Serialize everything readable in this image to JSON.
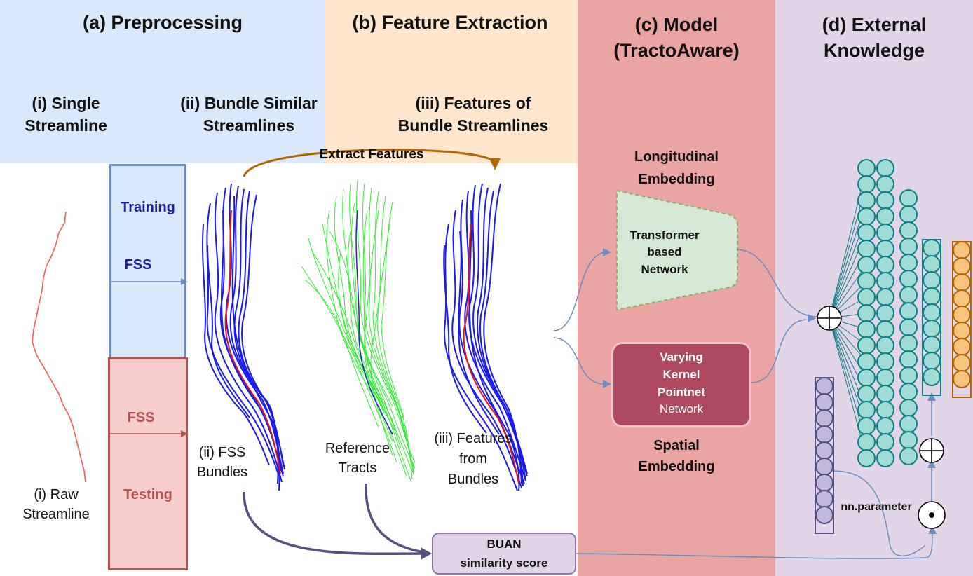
{
  "panels": {
    "a_title": "(a) Preprocessing",
    "b_title": "(b) Feature Extraction",
    "c_title_1": "(c) Model",
    "c_title_2": "(TractoAware)",
    "d_title_1": "(d) External",
    "d_title_2": "Knowledge"
  },
  "subtitles": {
    "i_1": "(i) Single",
    "i_2": "Streamline",
    "ii_1": "(ii) Bundle Similar",
    "ii_2": "Streamlines",
    "iii_1": "(iii) Features of",
    "iii_2": "Bundle Streamlines"
  },
  "preprocessing": {
    "training_label": "Training",
    "fss_top": "FSS",
    "fss_bottom": "FSS",
    "testing_label": "Testing",
    "raw_1": "(i) Raw",
    "raw_2": "Streamline",
    "fss_bundles_1": "(ii) FSS",
    "fss_bundles_2": "Bundles"
  },
  "features": {
    "extract_label": "Extract Features",
    "reference_1": "Reference",
    "reference_2": "Tracts",
    "from_bundles_1": "(iii) Features",
    "from_bundles_2": "from",
    "from_bundles_3": "Bundles",
    "buan_1": "BUAN",
    "buan_2": "similarity score"
  },
  "model": {
    "longitudinal_1": "Longitudinal",
    "longitudinal_2": "Embedding",
    "transformer_1": "Transformer",
    "transformer_2": "based",
    "transformer_3": "Network",
    "varying_1": "Varying",
    "varying_2": "Kernel",
    "varying_3": "Pointnet",
    "varying_4": "Network",
    "spatial_1": "Spatial",
    "spatial_2": "Embedding"
  },
  "knowledge": {
    "nn_param": "nn.parameter"
  },
  "colors": {
    "preprocess_bg": "#dae8fc",
    "feature_bg": "#ffe6cc",
    "model_bg": "#eaa5a3",
    "knowledge_bg": "#e1d5e7",
    "training_text": "#1d1daa",
    "testing_text": "#b85450",
    "teal_node": "#9fdcd6",
    "teal_stroke": "#0e8088",
    "orange_node": "#f8c37f",
    "orange_stroke": "#b46504",
    "purple_node": "#c2b8dc",
    "purple_stroke": "#56517e"
  }
}
